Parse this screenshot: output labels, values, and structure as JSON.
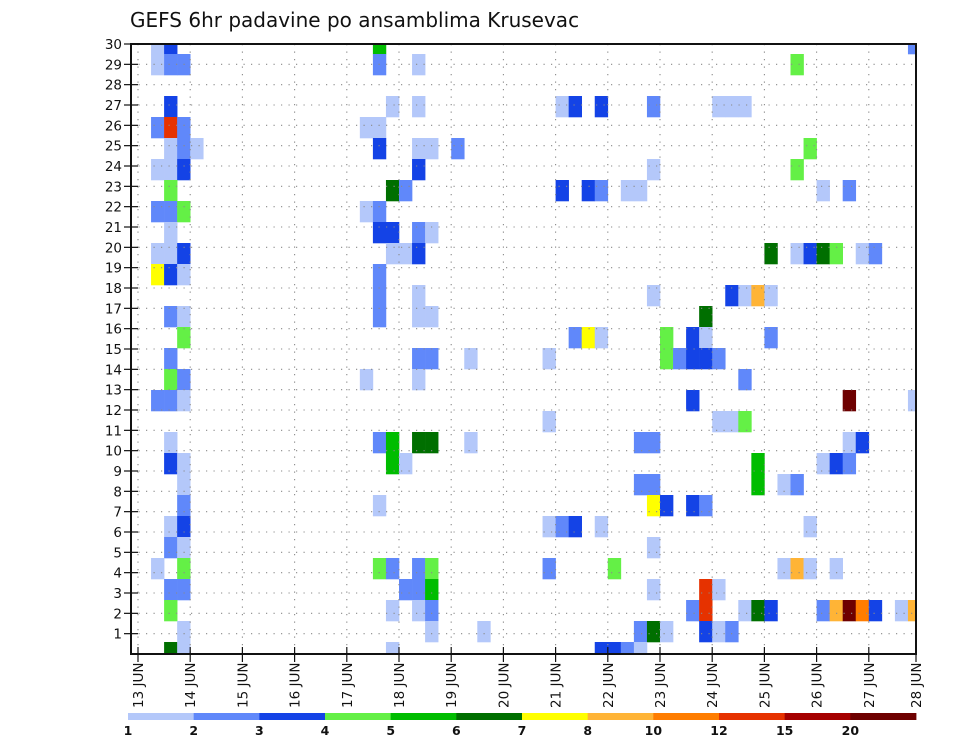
{
  "chart_data": {
    "type": "heatmap",
    "title": "GEFS 6hr padavine po ansamblima Krusevac",
    "xlabel": "",
    "ylabel": "",
    "ylim": [
      0,
      30
    ],
    "x_tick_labels": [
      "13 JUN",
      "14 JUN",
      "15 JUN",
      "16 JUN",
      "17 JUN",
      "18 JUN",
      "19 JUN",
      "20 JUN",
      "21 JUN",
      "22 JUN",
      "23 JUN",
      "24 JUN",
      "25 JUN",
      "26 JUN",
      "27 JUN",
      "28 JUN"
    ],
    "y_tick_labels": [
      "1",
      "2",
      "3",
      "4",
      "5",
      "6",
      "7",
      "8",
      "9",
      "10",
      "11",
      "12",
      "13",
      "14",
      "15",
      "16",
      "17",
      "18",
      "19",
      "20",
      "21",
      "22",
      "23",
      "24",
      "25",
      "26",
      "27",
      "28",
      "29",
      "30"
    ],
    "grid": true,
    "legend_position": "bottom",
    "colorbar": {
      "labels": [
        "1",
        "2",
        "3",
        "4",
        "5",
        "6",
        "7",
        "8",
        "10",
        "12",
        "15",
        "20"
      ],
      "colors": [
        "#b4c8fa",
        "#6088fa",
        "#1443e6",
        "#64f046",
        "#00bd00",
        "#006f00",
        "#ffff00",
        "#ffb436",
        "#ff7d00",
        "#e63200",
        "#a50000",
        "#6e0000"
      ]
    },
    "cells": [
      [
        30,
        1,
        0
      ],
      [
        30,
        2,
        2
      ],
      [
        30,
        18,
        4
      ],
      [
        30,
        59,
        1
      ],
      [
        29,
        1,
        0
      ],
      [
        29,
        2,
        1
      ],
      [
        29,
        3,
        1
      ],
      [
        29,
        18,
        1
      ],
      [
        29,
        21,
        0
      ],
      [
        29,
        50,
        3
      ],
      [
        27,
        2,
        2
      ],
      [
        27,
        19,
        0
      ],
      [
        27,
        21,
        0
      ],
      [
        27,
        32,
        0
      ],
      [
        27,
        33,
        2
      ],
      [
        27,
        35,
        2
      ],
      [
        27,
        39,
        1
      ],
      [
        27,
        44,
        0
      ],
      [
        27,
        45,
        0
      ],
      [
        27,
        46,
        0
      ],
      [
        26,
        1,
        1
      ],
      [
        26,
        2,
        9
      ],
      [
        26,
        3,
        1
      ],
      [
        26,
        17,
        0
      ],
      [
        26,
        18,
        0
      ],
      [
        25,
        2,
        0
      ],
      [
        25,
        3,
        1
      ],
      [
        25,
        4,
        0
      ],
      [
        25,
        18,
        2
      ],
      [
        25,
        21,
        0
      ],
      [
        25,
        22,
        0
      ],
      [
        25,
        24,
        1
      ],
      [
        25,
        51,
        3
      ],
      [
        24,
        1,
        0
      ],
      [
        24,
        2,
        0
      ],
      [
        24,
        3,
        2
      ],
      [
        24,
        21,
        2
      ],
      [
        24,
        39,
        0
      ],
      [
        24,
        50,
        3
      ],
      [
        23,
        2,
        3
      ],
      [
        23,
        19,
        5
      ],
      [
        23,
        20,
        1
      ],
      [
        23,
        32,
        2
      ],
      [
        23,
        34,
        2
      ],
      [
        23,
        35,
        1
      ],
      [
        23,
        37,
        0
      ],
      [
        23,
        38,
        0
      ],
      [
        23,
        52,
        0
      ],
      [
        23,
        54,
        1
      ],
      [
        22,
        1,
        1
      ],
      [
        22,
        2,
        1
      ],
      [
        22,
        3,
        3
      ],
      [
        22,
        17,
        0
      ],
      [
        22,
        18,
        1
      ],
      [
        21,
        2,
        0
      ],
      [
        21,
        18,
        2
      ],
      [
        21,
        19,
        2
      ],
      [
        21,
        21,
        1
      ],
      [
        21,
        22,
        0
      ],
      [
        20,
        1,
        0
      ],
      [
        20,
        2,
        0
      ],
      [
        20,
        3,
        2
      ],
      [
        20,
        19,
        0
      ],
      [
        20,
        20,
        0
      ],
      [
        20,
        21,
        2
      ],
      [
        20,
        48,
        5
      ],
      [
        20,
        50,
        0
      ],
      [
        20,
        51,
        2
      ],
      [
        20,
        52,
        5
      ],
      [
        20,
        53,
        3
      ],
      [
        20,
        55,
        0
      ],
      [
        20,
        56,
        1
      ],
      [
        19,
        1,
        6
      ],
      [
        19,
        2,
        2
      ],
      [
        19,
        3,
        0
      ],
      [
        19,
        18,
        1
      ],
      [
        18,
        18,
        1
      ],
      [
        18,
        21,
        0
      ],
      [
        18,
        39,
        0
      ],
      [
        18,
        45,
        2
      ],
      [
        18,
        46,
        0
      ],
      [
        18,
        47,
        7
      ],
      [
        18,
        48,
        0
      ],
      [
        17,
        2,
        1
      ],
      [
        17,
        3,
        0
      ],
      [
        17,
        18,
        1
      ],
      [
        17,
        21,
        0
      ],
      [
        17,
        22,
        0
      ],
      [
        17,
        43,
        5
      ],
      [
        16,
        3,
        3
      ],
      [
        16,
        33,
        1
      ],
      [
        16,
        34,
        6
      ],
      [
        16,
        35,
        0
      ],
      [
        16,
        40,
        3
      ],
      [
        16,
        42,
        2
      ],
      [
        16,
        43,
        0
      ],
      [
        16,
        48,
        1
      ],
      [
        15,
        2,
        1
      ],
      [
        15,
        21,
        1
      ],
      [
        15,
        22,
        1
      ],
      [
        15,
        25,
        0
      ],
      [
        15,
        31,
        0
      ],
      [
        15,
        40,
        3
      ],
      [
        15,
        41,
        1
      ],
      [
        15,
        42,
        2
      ],
      [
        15,
        43,
        2
      ],
      [
        15,
        44,
        1
      ],
      [
        14,
        2,
        3
      ],
      [
        14,
        3,
        1
      ],
      [
        14,
        17,
        0
      ],
      [
        14,
        21,
        0
      ],
      [
        14,
        46,
        1
      ],
      [
        13,
        1,
        1
      ],
      [
        13,
        2,
        1
      ],
      [
        13,
        3,
        0
      ],
      [
        13,
        42,
        2
      ],
      [
        13,
        54,
        11
      ],
      [
        13,
        59,
        0
      ],
      [
        12,
        31,
        0
      ],
      [
        12,
        44,
        0
      ],
      [
        12,
        45,
        0
      ],
      [
        12,
        46,
        3
      ],
      [
        11,
        2,
        0
      ],
      [
        11,
        18,
        1
      ],
      [
        11,
        19,
        4
      ],
      [
        11,
        21,
        5
      ],
      [
        11,
        22,
        5
      ],
      [
        11,
        25,
        0
      ],
      [
        11,
        38,
        1
      ],
      [
        11,
        39,
        1
      ],
      [
        11,
        54,
        0
      ],
      [
        11,
        55,
        2
      ],
      [
        10,
        2,
        2
      ],
      [
        10,
        3,
        0
      ],
      [
        10,
        19,
        4
      ],
      [
        10,
        20,
        0
      ],
      [
        10,
        47,
        4
      ],
      [
        10,
        52,
        0
      ],
      [
        10,
        53,
        2
      ],
      [
        10,
        54,
        1
      ],
      [
        9,
        3,
        0
      ],
      [
        9,
        38,
        1
      ],
      [
        9,
        39,
        1
      ],
      [
        9,
        47,
        4
      ],
      [
        9,
        49,
        0
      ],
      [
        9,
        50,
        1
      ],
      [
        8,
        3,
        1
      ],
      [
        8,
        18,
        0
      ],
      [
        8,
        39,
        6
      ],
      [
        8,
        40,
        2
      ],
      [
        8,
        42,
        2
      ],
      [
        8,
        43,
        1
      ],
      [
        7,
        2,
        0
      ],
      [
        7,
        3,
        2
      ],
      [
        7,
        31,
        0
      ],
      [
        7,
        32,
        1
      ],
      [
        7,
        33,
        2
      ],
      [
        7,
        35,
        0
      ],
      [
        7,
        51,
        0
      ],
      [
        6,
        2,
        1
      ],
      [
        6,
        3,
        0
      ],
      [
        6,
        39,
        0
      ],
      [
        5,
        1,
        0
      ],
      [
        5,
        3,
        3
      ],
      [
        5,
        18,
        3
      ],
      [
        5,
        19,
        1
      ],
      [
        5,
        21,
        1
      ],
      [
        5,
        22,
        3
      ],
      [
        5,
        31,
        1
      ],
      [
        5,
        36,
        3
      ],
      [
        5,
        49,
        0
      ],
      [
        5,
        50,
        7
      ],
      [
        5,
        51,
        0
      ],
      [
        5,
        53,
        0
      ],
      [
        4,
        2,
        1
      ],
      [
        4,
        3,
        1
      ],
      [
        4,
        20,
        1
      ],
      [
        4,
        21,
        1
      ],
      [
        4,
        22,
        4
      ],
      [
        4,
        39,
        0
      ],
      [
        4,
        43,
        9
      ],
      [
        4,
        44,
        0
      ],
      [
        3,
        2,
        3
      ],
      [
        3,
        19,
        0
      ],
      [
        3,
        21,
        0
      ],
      [
        3,
        22,
        1
      ],
      [
        3,
        42,
        1
      ],
      [
        3,
        43,
        9
      ],
      [
        3,
        46,
        0
      ],
      [
        3,
        47,
        5
      ],
      [
        3,
        48,
        2
      ],
      [
        3,
        52,
        1
      ],
      [
        3,
        53,
        7
      ],
      [
        3,
        54,
        11
      ],
      [
        3,
        55,
        8
      ],
      [
        3,
        56,
        2
      ],
      [
        3,
        58,
        0
      ],
      [
        3,
        59,
        7
      ],
      [
        2,
        3,
        0
      ],
      [
        2,
        22,
        0
      ],
      [
        2,
        26,
        0
      ],
      [
        2,
        38,
        1
      ],
      [
        2,
        39,
        5
      ],
      [
        2,
        40,
        0
      ],
      [
        2,
        43,
        2
      ],
      [
        2,
        44,
        0
      ],
      [
        2,
        45,
        1
      ],
      [
        1,
        2,
        5
      ],
      [
        1,
        3,
        0
      ],
      [
        1,
        19,
        0
      ],
      [
        1,
        35,
        2
      ],
      [
        1,
        36,
        2
      ],
      [
        1,
        37,
        1
      ],
      [
        1,
        38,
        0
      ]
    ]
  }
}
